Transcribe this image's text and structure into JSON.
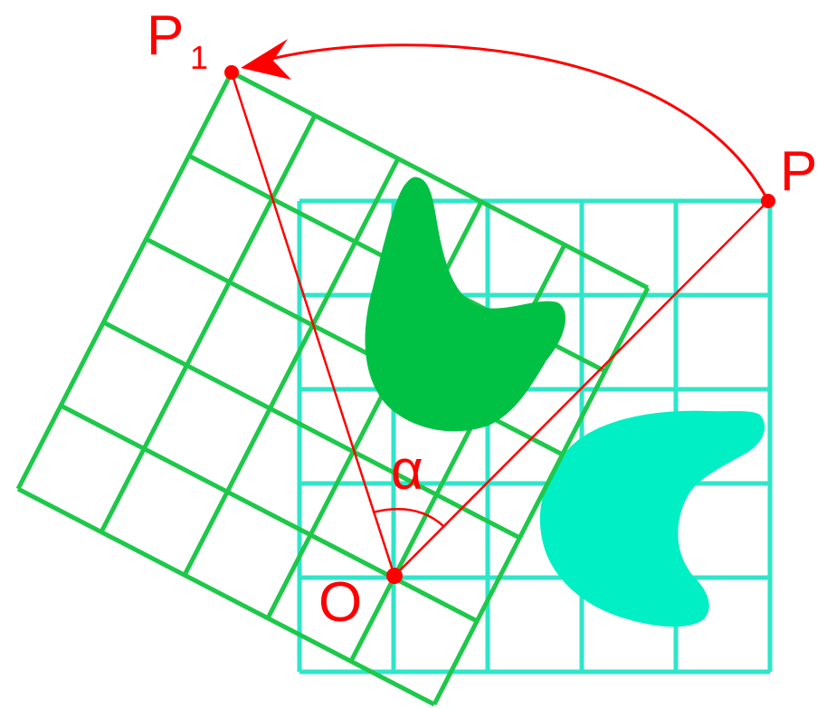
{
  "labels": {
    "p1": "P",
    "p1_subscript": "1",
    "p": "P",
    "o": "O",
    "alpha": "α"
  },
  "colors": {
    "rotated_grid": "#1ec84a",
    "rotated_shape": "#00c144",
    "original_grid": "#2ee6c8",
    "original_shape": "#00efc4",
    "construction": "#ff0000",
    "background": "#ffffff"
  }
}
